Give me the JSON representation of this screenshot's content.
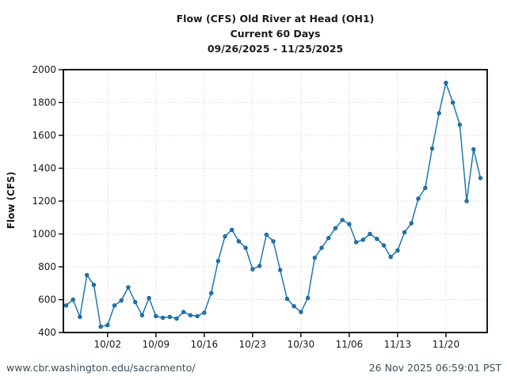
{
  "chart_data": {
    "type": "line",
    "title": "Flow (CFS) Old River at Head (OH1)",
    "subtitle": "Current 60 Days",
    "date_range": "09/26/2025 - 11/25/2025",
    "xlabel": "",
    "ylabel": "Flow (CFS)",
    "ylim": [
      400,
      2000
    ],
    "yticks": [
      400,
      600,
      800,
      1000,
      1200,
      1400,
      1600,
      1800,
      2000
    ],
    "grid": "dotted",
    "legend": "none",
    "line_color": "#1f77b4",
    "marker_color": "#1f77b4",
    "grid_color": "#cccccc",
    "x": [
      "09/26",
      "09/27",
      "09/28",
      "09/29",
      "09/30",
      "10/01",
      "10/02",
      "10/03",
      "10/04",
      "10/05",
      "10/06",
      "10/07",
      "10/08",
      "10/09",
      "10/10",
      "10/11",
      "10/12",
      "10/13",
      "10/14",
      "10/15",
      "10/16",
      "10/17",
      "10/18",
      "10/19",
      "10/20",
      "10/21",
      "10/22",
      "10/23",
      "10/24",
      "10/25",
      "10/26",
      "10/27",
      "10/28",
      "10/29",
      "10/30",
      "10/31",
      "11/01",
      "11/02",
      "11/03",
      "11/04",
      "11/05",
      "11/06",
      "11/07",
      "11/08",
      "11/09",
      "11/10",
      "11/11",
      "11/12",
      "11/13",
      "11/14",
      "11/15",
      "11/16",
      "11/17",
      "11/18",
      "11/19",
      "11/20",
      "11/21",
      "11/22",
      "11/23",
      "11/24",
      "11/25"
    ],
    "values": [
      565,
      600,
      495,
      750,
      690,
      435,
      445,
      565,
      595,
      675,
      585,
      505,
      610,
      500,
      490,
      495,
      485,
      525,
      505,
      500,
      520,
      640,
      835,
      985,
      1025,
      955,
      915,
      785,
      805,
      995,
      955,
      780,
      605,
      560,
      525,
      610,
      855,
      915,
      975,
      1035,
      1085,
      1060,
      950,
      965,
      1000,
      970,
      930,
      860,
      900,
      1010,
      1065,
      1215,
      1280,
      1520,
      1735,
      1920,
      1800,
      1665,
      1200,
      1515,
      1340
    ],
    "xticks": [
      {
        "label": "10/02",
        "index": 6
      },
      {
        "label": "10/09",
        "index": 13
      },
      {
        "label": "10/16",
        "index": 20
      },
      {
        "label": "10/23",
        "index": 27
      },
      {
        "label": "10/30",
        "index": 34
      },
      {
        "label": "11/06",
        "index": 41
      },
      {
        "label": "11/13",
        "index": 48
      },
      {
        "label": "11/20",
        "index": 55
      }
    ]
  },
  "footer": {
    "url": "www.cbr.washington.edu/sacramento/",
    "timestamp": "26 Nov 2025 06:59:01 PST"
  }
}
